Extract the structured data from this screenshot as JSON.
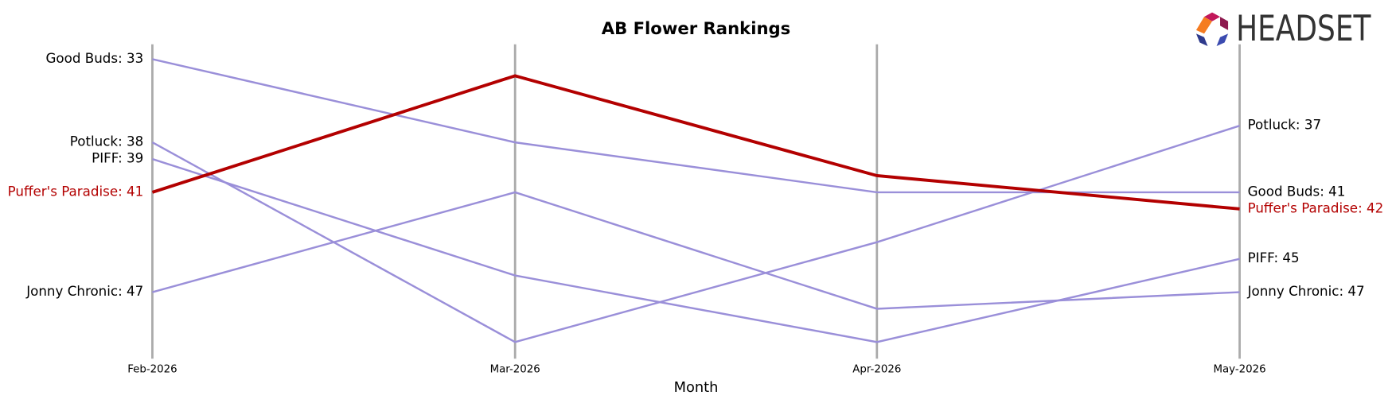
{
  "chart_data": {
    "type": "bump",
    "title": "AB Flower Rankings",
    "x_label": "Month",
    "logo": "HEADSET",
    "categories": [
      "Feb-2026",
      "Mar-2026",
      "Apr-2026",
      "May-2026"
    ],
    "ylim": [
      51,
      32
    ],
    "inverted": true,
    "series": [
      {
        "name": "Good Buds",
        "color": "#9a8fd9",
        "highlight": false,
        "values": [
          33,
          38,
          41,
          41
        ],
        "value_labels": [
          "Good Buds: 33",
          null,
          null,
          "Good Buds: 41"
        ]
      },
      {
        "name": "Potluck",
        "color": "#9a8fd9",
        "highlight": false,
        "values": [
          38,
          50,
          44,
          37
        ],
        "value_labels": [
          "Potluck: 38",
          null,
          null,
          "Potluck: 37"
        ]
      },
      {
        "name": "PIFF",
        "color": "#9a8fd9",
        "highlight": false,
        "values": [
          39,
          46,
          50,
          45
        ],
        "value_labels": [
          "PIFF: 39",
          null,
          null,
          "PIFF: 45"
        ]
      },
      {
        "name": "Jonny Chronic",
        "color": "#9a8fd9",
        "highlight": false,
        "values": [
          47,
          41,
          48,
          47
        ],
        "value_labels": [
          "Jonny Chronic: 47",
          null,
          null,
          "Jonny Chronic: 47"
        ]
      },
      {
        "name": "Puffer's Paradise",
        "color": "#b30000",
        "highlight": true,
        "values": [
          41,
          34,
          40,
          42
        ],
        "value_labels": [
          "Puffer's Paradise: 41",
          null,
          null,
          "Puffer's Paradise: 42"
        ]
      }
    ]
  }
}
